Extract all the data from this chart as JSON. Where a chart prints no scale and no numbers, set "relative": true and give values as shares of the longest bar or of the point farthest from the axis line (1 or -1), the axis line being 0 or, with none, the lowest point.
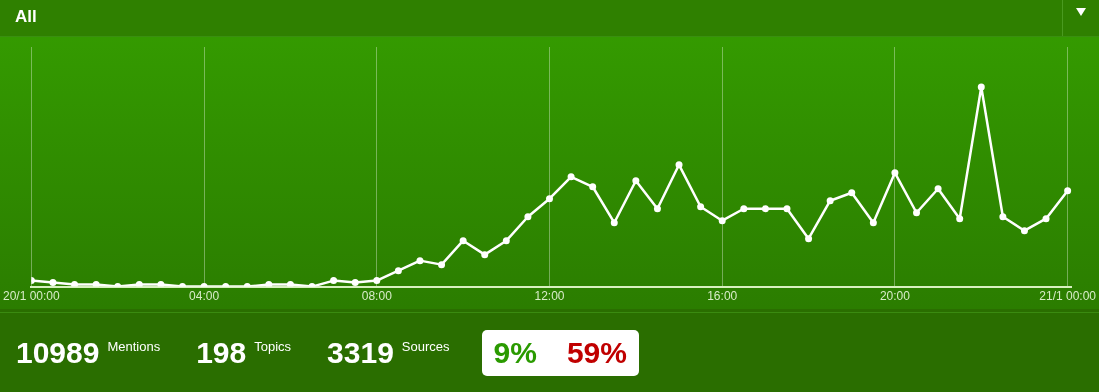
{
  "chart_data": {
    "type": "line",
    "title": "All",
    "relative": true,
    "grid": "x",
    "marker": "circle",
    "tick_labels": "x",
    "x": [
      0,
      0.5,
      1,
      1.5,
      2,
      2.5,
      3,
      3.5,
      4,
      4.5,
      5,
      5.5,
      6,
      6.5,
      7,
      7.5,
      8,
      8.5,
      9,
      9.5,
      10,
      10.5,
      11,
      11.5,
      12,
      12.5,
      13,
      13.5,
      14,
      14.5,
      15,
      15.5,
      16,
      16.5,
      17,
      17.5,
      18,
      18.5,
      19,
      19.5,
      20,
      20.5,
      21,
      21.5,
      22,
      22.5,
      23,
      23.5,
      24
    ],
    "xlim": [
      0,
      24.1
    ],
    "xticks": [
      {
        "value": 0,
        "label": "20/1 00:00"
      },
      {
        "value": 4,
        "label": "04:00"
      },
      {
        "value": 8,
        "label": "08:00"
      },
      {
        "value": 12,
        "label": "12:00"
      },
      {
        "value": 16,
        "label": "16:00"
      },
      {
        "value": 20,
        "label": "20:00"
      },
      {
        "value": 24,
        "label": "21/1 00:00"
      }
    ],
    "series": [
      {
        "color": "#ffffff",
        "values": [
          0.03,
          0.02,
          0.01,
          0.01,
          0,
          0.01,
          0.01,
          0,
          0,
          0,
          0,
          0.01,
          0.01,
          0,
          0.03,
          0.02,
          0.03,
          0.08,
          0.13,
          0.11,
          0.23,
          0.16,
          0.23,
          0.35,
          0.44,
          0.55,
          0.5,
          0.32,
          0.53,
          0.39,
          0.61,
          0.4,
          0.33,
          0.39,
          0.39,
          0.39,
          0.24,
          0.43,
          0.47,
          0.32,
          0.57,
          0.37,
          0.49,
          0.34,
          1,
          0.35,
          0.28,
          0.34,
          0.48
        ]
      }
    ],
    "annotations": [
      "10989",
      "Mentions",
      "198",
      "Topics",
      "3319",
      "Sources",
      "9%",
      "59%"
    ]
  }
}
